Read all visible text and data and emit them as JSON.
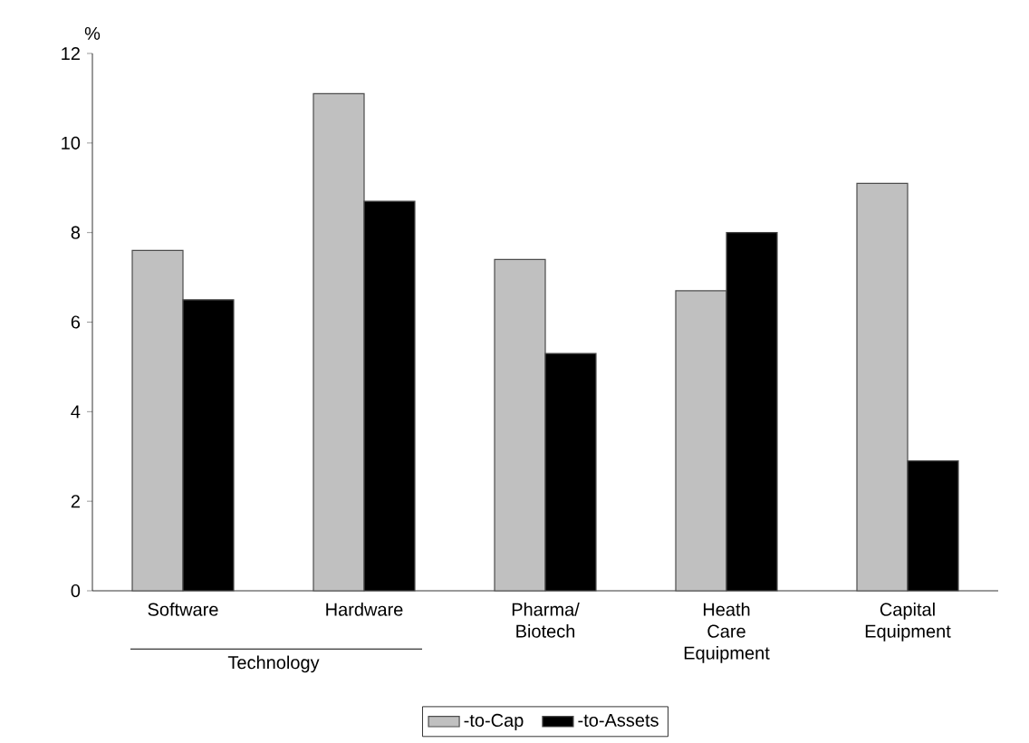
{
  "chart_data": {
    "type": "bar",
    "ylabel": "%",
    "categories": [
      "Software",
      "Hardware",
      "Pharma/ Biotech",
      "Heath Care Equipment",
      "Capital Equipment"
    ],
    "series": [
      {
        "name": "-to-Cap",
        "color": "#c0c0c0",
        "values": [
          7.6,
          11.1,
          7.4,
          6.7,
          9.1
        ]
      },
      {
        "name": "-to-Assets",
        "color": "#000000",
        "values": [
          6.5,
          8.7,
          5.3,
          8.0,
          2.9
        ]
      }
    ],
    "annotations": [
      "Technology"
    ],
    "ylim": [
      0,
      12
    ],
    "yticks": [
      0,
      2,
      4,
      6,
      8,
      10,
      12
    ],
    "legend": "bottom"
  }
}
